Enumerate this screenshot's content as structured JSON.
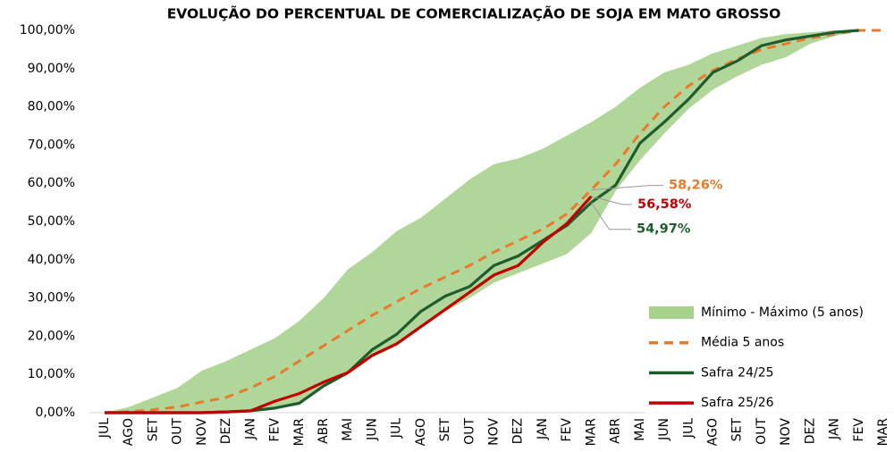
{
  "chart_data": {
    "type": "line",
    "title": "EVOLUÇÃO DO PERCENTUAL DE COMERCIALIZAÇÃO DE SOJA EM MATO GROSSO",
    "categories": [
      "JUL",
      "AGO",
      "SET",
      "OUT",
      "NOV",
      "DEZ",
      "JAN",
      "FEV",
      "MAR",
      "ABR",
      "MAI",
      "JUN",
      "JUL",
      "AGO",
      "SET",
      "OUT",
      "NOV",
      "DEZ",
      "JAN",
      "FEV",
      "MAR",
      "ABR",
      "MAI",
      "JUN",
      "JUL",
      "AGO",
      "SET",
      "OUT",
      "NOV",
      "DEZ",
      "JAN",
      "FEV",
      "MAR"
    ],
    "ylim": [
      0,
      100
    ],
    "yticks": [
      {
        "value": 0,
        "label": "0,00%"
      },
      {
        "value": 10,
        "label": "10,00%"
      },
      {
        "value": 20,
        "label": "20,00%"
      },
      {
        "value": 30,
        "label": "30,00%"
      },
      {
        "value": 40,
        "label": "40,00%"
      },
      {
        "value": 50,
        "label": "50,00%"
      },
      {
        "value": 60,
        "label": "60,00%"
      },
      {
        "value": 70,
        "label": "70,00%"
      },
      {
        "value": 80,
        "label": "80,00%"
      },
      {
        "value": 90,
        "label": "90,00%"
      },
      {
        "value": 100,
        "label": "100,00%"
      }
    ],
    "grid": false,
    "legend": "lower-right",
    "series": [
      {
        "name": "Mínimo - Máximo (5 anos)",
        "color": "#a9d18e",
        "style": "band",
        "max": [
          0,
          1.5,
          4,
          6.5,
          11,
          13.5,
          16.5,
          19.5,
          24,
          30,
          37.5,
          42,
          47.5,
          51,
          56,
          61,
          65,
          66.5,
          69,
          72.5,
          76,
          80,
          85,
          89,
          91,
          94,
          96,
          98,
          99,
          99.5,
          100,
          100,
          100
        ],
        "min": [
          0,
          0,
          0,
          0,
          0,
          0.2,
          0.5,
          1,
          2,
          6.5,
          10,
          14.5,
          17.5,
          22,
          26.5,
          30,
          34,
          36.5,
          39,
          41.5,
          47,
          58,
          66,
          73,
          79.5,
          84.5,
          88,
          91,
          93,
          96.5,
          98.5,
          100,
          100
        ]
      },
      {
        "name": "Média 5 anos",
        "color": "#e97a2b",
        "style": "dashed",
        "values": [
          0,
          0.3,
          0.8,
          1.5,
          2.8,
          4,
          6.5,
          9.5,
          13.5,
          17.5,
          21.5,
          25.5,
          29,
          32.5,
          35.5,
          38.5,
          42,
          45,
          48,
          52,
          58.26,
          65,
          73,
          80,
          85.5,
          89.5,
          92.5,
          95,
          96.5,
          98,
          99,
          100,
          100
        ],
        "value_labels": [
          null,
          null,
          null,
          null,
          null,
          null,
          null,
          null,
          null,
          null,
          null,
          null,
          null,
          null,
          null,
          null,
          null,
          null,
          null,
          null,
          "58,26%",
          null,
          null,
          null,
          null,
          null,
          null,
          null,
          null,
          null,
          null,
          null,
          null
        ]
      },
      {
        "name": "Safra 24/25",
        "color": "#1e5c2e",
        "style": "solid",
        "values": [
          0,
          0,
          0,
          0,
          0,
          0.2,
          0.5,
          1.2,
          2.5,
          7,
          10.5,
          16.5,
          20.5,
          26.5,
          30.5,
          33,
          38.5,
          41,
          45,
          49,
          54.97,
          59.5,
          70.5,
          76,
          82,
          89,
          92,
          96,
          97.5,
          98.5,
          99.5,
          100,
          null
        ],
        "value_labels": [
          null,
          null,
          null,
          null,
          null,
          null,
          null,
          null,
          null,
          null,
          null,
          null,
          null,
          null,
          null,
          null,
          null,
          null,
          null,
          null,
          "54,97%",
          null,
          null,
          null,
          null,
          null,
          null,
          null,
          null,
          null,
          null,
          null,
          null
        ]
      },
      {
        "name": "Safra 25/26",
        "color": "#c00000",
        "style": "solid",
        "values": [
          0,
          0,
          0,
          0,
          0,
          0.2,
          0.5,
          3,
          5,
          8,
          10.5,
          15,
          18,
          22.5,
          27,
          31.5,
          36,
          38.5,
          44.5,
          49.5,
          56.58,
          null,
          null,
          null,
          null,
          null,
          null,
          null,
          null,
          null,
          null,
          null,
          null
        ],
        "value_labels": [
          null,
          null,
          null,
          null,
          null,
          null,
          null,
          null,
          null,
          null,
          null,
          null,
          null,
          null,
          null,
          null,
          null,
          null,
          null,
          null,
          "56,58%",
          null,
          null,
          null,
          null,
          null,
          null,
          null,
          null,
          null,
          null,
          null,
          null
        ]
      }
    ]
  }
}
